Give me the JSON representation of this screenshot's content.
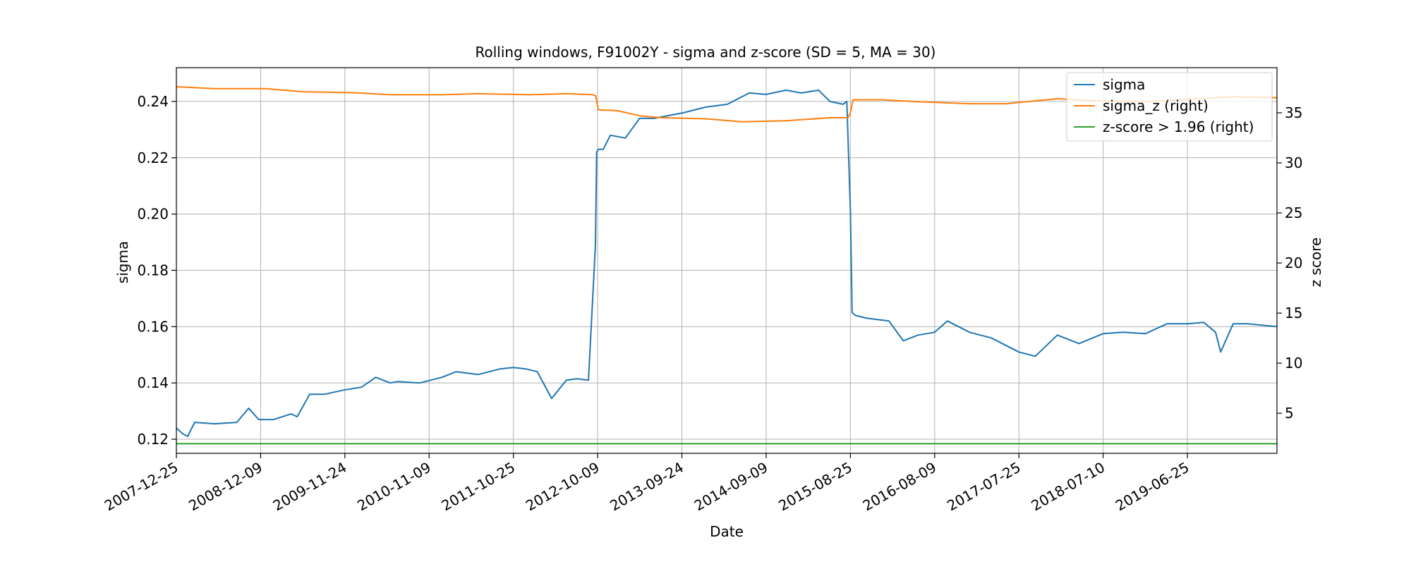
{
  "chart_data": {
    "type": "line",
    "title": "Rolling windows, F91002Y - sigma and z-score (SD = 5, MA = 30)",
    "xlabel": "Date",
    "ylabel": "sigma",
    "ylabel_right": "z score",
    "x_range": [
      "2007-12-25",
      "2020-07-01"
    ],
    "x_ticks": [
      "2007-12-25",
      "2008-12-09",
      "2009-11-24",
      "2010-11-09",
      "2011-10-25",
      "2012-10-09",
      "2013-09-24",
      "2014-09-09",
      "2015-08-25",
      "2016-08-09",
      "2017-07-25",
      "2018-07-10",
      "2019-06-25"
    ],
    "ylim": [
      0.115,
      0.252
    ],
    "y_ticks": [
      0.12,
      0.14,
      0.16,
      0.18,
      0.2,
      0.22,
      0.24
    ],
    "y_tick_labels": [
      "0.12",
      "0.14",
      "0.16",
      "0.18",
      "0.20",
      "0.22",
      "0.24"
    ],
    "ylim_right": [
      1.0,
      39.5
    ],
    "y_ticks_right": [
      5,
      10,
      15,
      20,
      25,
      30,
      35
    ],
    "y_tick_labels_right": [
      "5",
      "10",
      "15",
      "20",
      "25",
      "30",
      "35"
    ],
    "grid": true,
    "legend_position": "top-right",
    "series": [
      {
        "name": "sigma",
        "axis": "left",
        "color": "#1f77b4",
        "x": [
          "2007-12-25",
          "2008-01-20",
          "2008-02-10",
          "2008-03-10",
          "2008-06-01",
          "2008-09-01",
          "2008-10-20",
          "2008-12-01",
          "2009-02-01",
          "2009-04-15",
          "2009-05-10",
          "2009-07-01",
          "2009-09-01",
          "2009-11-20",
          "2010-02-01",
          "2010-04-01",
          "2010-06-01",
          "2010-07-01",
          "2010-10-01",
          "2011-01-01",
          "2011-03-01",
          "2011-06-01",
          "2011-09-01",
          "2011-10-25",
          "2011-12-15",
          "2012-02-01",
          "2012-04-01",
          "2012-06-01",
          "2012-07-15",
          "2012-09-01",
          "2012-09-30",
          "2012-10-05",
          "2012-10-12",
          "2012-11-01",
          "2012-12-01",
          "2013-02-01",
          "2013-04-01",
          "2013-06-01",
          "2013-08-01",
          "2013-10-01",
          "2014-01-01",
          "2014-04-01",
          "2014-07-01",
          "2014-09-09",
          "2014-12-01",
          "2015-02-01",
          "2015-04-15",
          "2015-06-01",
          "2015-07-25",
          "2015-08-10",
          "2015-08-25",
          "2015-09-01",
          "2015-09-15",
          "2015-11-01",
          "2016-02-01",
          "2016-04-01",
          "2016-06-01",
          "2016-08-09",
          "2016-10-01",
          "2017-01-01",
          "2017-04-01",
          "2017-07-25",
          "2017-10-01",
          "2018-01-01",
          "2018-04-01",
          "2018-07-10",
          "2018-10-01",
          "2019-01-01",
          "2019-04-01",
          "2019-06-25",
          "2019-09-01",
          "2019-10-20",
          "2019-11-10",
          "2020-01-01",
          "2020-03-01",
          "2020-07-01"
        ],
        "y": [
          0.124,
          0.122,
          0.121,
          0.126,
          0.1255,
          0.126,
          0.131,
          0.127,
          0.127,
          0.129,
          0.128,
          0.136,
          0.136,
          0.1375,
          0.1385,
          0.142,
          0.14,
          0.1405,
          0.14,
          0.142,
          0.144,
          0.143,
          0.145,
          0.1455,
          0.145,
          0.144,
          0.1345,
          0.141,
          0.1415,
          0.141,
          0.189,
          0.222,
          0.223,
          0.223,
          0.228,
          0.227,
          0.234,
          0.234,
          0.235,
          0.236,
          0.238,
          0.239,
          0.243,
          0.2425,
          0.244,
          0.243,
          0.244,
          0.24,
          0.239,
          0.24,
          0.201,
          0.165,
          0.164,
          0.163,
          0.162,
          0.155,
          0.157,
          0.158,
          0.162,
          0.158,
          0.156,
          0.151,
          0.1495,
          0.157,
          0.154,
          0.1575,
          0.158,
          0.1575,
          0.161,
          0.161,
          0.1615,
          0.158,
          0.151,
          0.161,
          0.161,
          0.16
        ]
      },
      {
        "name": "sigma_z (right)",
        "axis": "right",
        "color": "#ff7f0e",
        "x": [
          "2007-12-25",
          "2008-06-01",
          "2009-01-01",
          "2009-06-01",
          "2010-01-01",
          "2010-06-01",
          "2011-01-01",
          "2011-06-01",
          "2012-01-01",
          "2012-06-01",
          "2012-09-20",
          "2012-10-01",
          "2012-10-12",
          "2013-01-01",
          "2013-04-01",
          "2013-07-01",
          "2014-01-01",
          "2014-06-01",
          "2014-12-01",
          "2015-06-01",
          "2015-08-15",
          "2015-08-25",
          "2015-09-05",
          "2016-01-01",
          "2016-06-01",
          "2017-01-01",
          "2017-06-01",
          "2018-01-01",
          "2018-06-01",
          "2019-01-01",
          "2019-06-01",
          "2020-01-01",
          "2020-07-01"
        ],
        "y": [
          37.6,
          37.4,
          37.4,
          37.1,
          37.0,
          36.8,
          36.8,
          36.9,
          36.8,
          36.9,
          36.8,
          36.7,
          35.3,
          35.2,
          34.7,
          34.5,
          34.4,
          34.1,
          34.2,
          34.5,
          34.5,
          35.0,
          36.3,
          36.3,
          36.1,
          35.9,
          35.9,
          36.4,
          36.2,
          36.1,
          36.3,
          36.6,
          36.5
        ]
      },
      {
        "name": "z-score > 1.96 (right)",
        "axis": "right",
        "color": "#2ca02c",
        "x": [
          "2007-12-25",
          "2020-07-01"
        ],
        "y": [
          1.96,
          1.96
        ]
      }
    ]
  }
}
